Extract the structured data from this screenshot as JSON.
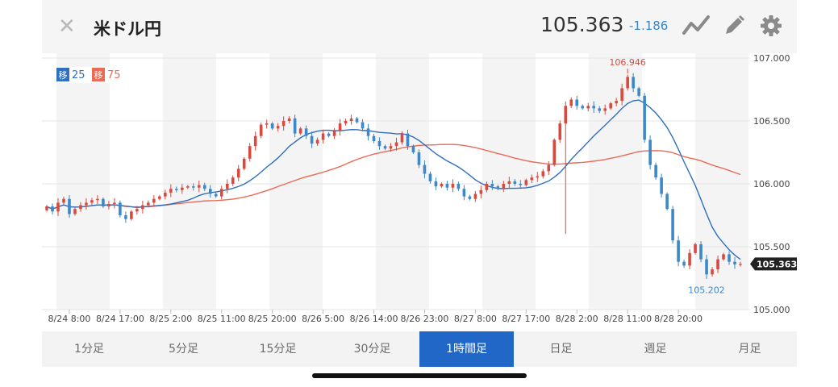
{
  "header": {
    "title": "米ドル円",
    "price": "105.363",
    "change": "-1.186",
    "icons": [
      "close-icon",
      "chart-type-icon",
      "pencil-icon",
      "gear-icon"
    ]
  },
  "legend": {
    "ma_short_tag": "移",
    "ma_short_period": "25",
    "ma_long_tag": "移",
    "ma_long_period": "75"
  },
  "colors": {
    "up": "#d84a40",
    "down": "#3c88c8",
    "ma_short": "#2f6fbe",
    "ma_long": "#ea6a55",
    "active_tab": "#2167c8",
    "price_label_bg": "#222222"
  },
  "tabs": [
    {
      "label": "1分足",
      "active": false
    },
    {
      "label": "5分足",
      "active": false
    },
    {
      "label": "15分足",
      "active": false
    },
    {
      "label": "30分足",
      "active": false
    },
    {
      "label": "1時間足",
      "active": true
    },
    {
      "label": "日足",
      "active": false
    },
    {
      "label": "週足",
      "active": false
    },
    {
      "label": "月足",
      "active": false
    }
  ],
  "chart_data": {
    "type": "candlestick",
    "timeframe": "1時間足",
    "ylim": [
      105.0,
      107.0
    ],
    "yticks": [
      "107.000",
      "106.500",
      "106.000",
      "105.500",
      "105.000"
    ],
    "xticks": [
      "8/24 8:00",
      "8/24 17:00",
      "8/25 2:00",
      "8/25 11:00",
      "8/25 20:00",
      "8/26 5:00",
      "8/26 14:00",
      "8/26 23:00",
      "8/27 8:00",
      "8/27 17:00",
      "8/28 2:00",
      "8/28 11:00",
      "8/28 20:00"
    ],
    "high_label": "106.946",
    "low_label": "105.202",
    "current_price": "105.363",
    "closes": [
      105.82,
      105.78,
      105.85,
      105.88,
      105.76,
      105.8,
      105.83,
      105.85,
      105.87,
      105.88,
      105.82,
      105.84,
      105.85,
      105.75,
      105.72,
      105.78,
      105.8,
      105.83,
      105.85,
      105.88,
      105.9,
      105.93,
      105.96,
      105.95,
      105.97,
      105.98,
      105.97,
      105.99,
      105.96,
      105.92,
      105.9,
      105.96,
      106.0,
      106.05,
      106.12,
      106.2,
      106.3,
      106.38,
      106.47,
      106.48,
      106.44,
      106.46,
      106.5,
      106.52,
      106.4,
      106.44,
      106.38,
      106.32,
      106.35,
      106.4,
      106.38,
      106.42,
      106.48,
      106.5,
      106.52,
      106.49,
      106.44,
      106.38,
      106.34,
      106.3,
      106.28,
      106.3,
      106.33,
      106.4,
      106.3,
      106.25,
      106.15,
      106.08,
      106.02,
      105.98,
      106.0,
      105.97,
      106.0,
      105.96,
      105.9,
      105.88,
      105.92,
      105.95,
      106.0,
      105.98,
      105.96,
      106.0,
      106.02,
      106.0,
      105.99,
      106.03,
      106.05,
      106.06,
      106.1,
      106.15,
      106.35,
      106.48,
      106.62,
      106.67,
      106.62,
      106.6,
      106.62,
      106.6,
      106.58,
      106.6,
      106.64,
      106.66,
      106.76,
      106.85,
      106.76,
      106.7,
      106.35,
      106.15,
      106.05,
      105.92,
      105.8,
      105.55,
      105.38,
      105.35,
      105.45,
      105.52,
      105.4,
      105.28,
      105.32,
      105.4,
      105.44,
      105.38,
      105.36,
      105.363
    ]
  }
}
